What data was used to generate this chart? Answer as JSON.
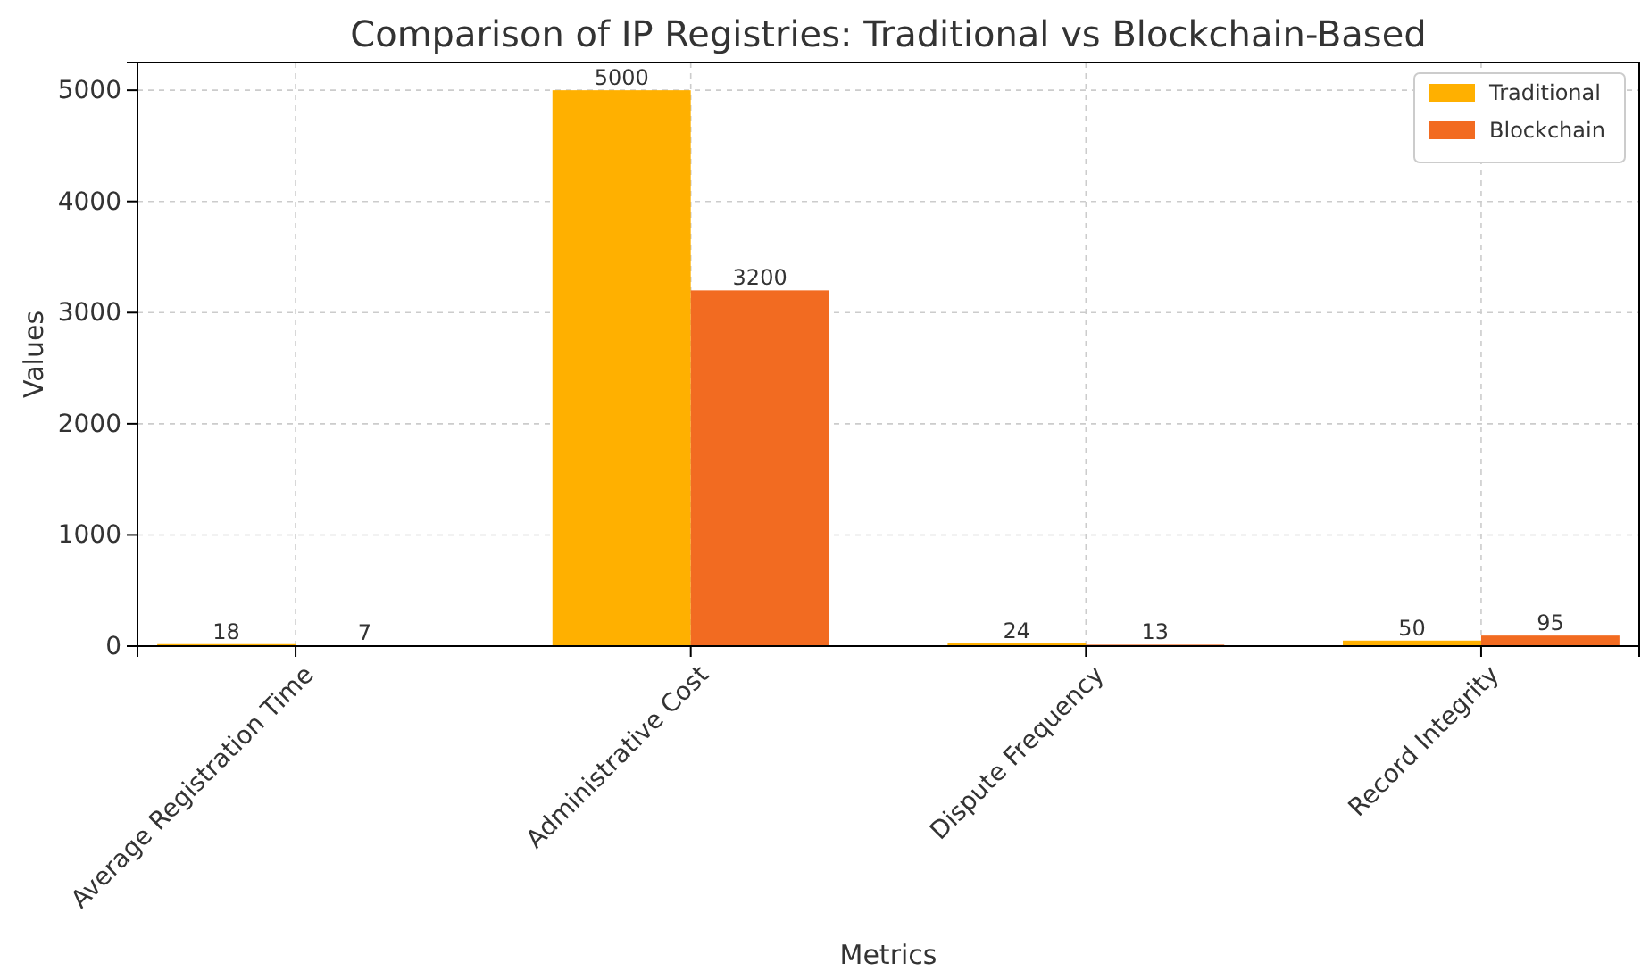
{
  "chart_data": {
    "type": "bar",
    "title": "Comparison of IP Registries: Traditional vs Blockchain-Based",
    "xlabel": "Metrics",
    "ylabel": "Values",
    "categories": [
      "Average Registration Time",
      "Administrative Cost",
      "Dispute Frequency",
      "Record Integrity"
    ],
    "series": [
      {
        "name": "Traditional",
        "color": "#ffb000",
        "values": [
          18,
          5000,
          24,
          50
        ]
      },
      {
        "name": "Blockchain",
        "color": "#f26b21",
        "values": [
          7,
          3200,
          13,
          95
        ]
      }
    ],
    "ylim": [
      0,
      5250
    ],
    "yticks": [
      0,
      1000,
      2000,
      3000,
      4000,
      5000
    ],
    "grid": true,
    "legend": "top right",
    "data_labels": true
  }
}
